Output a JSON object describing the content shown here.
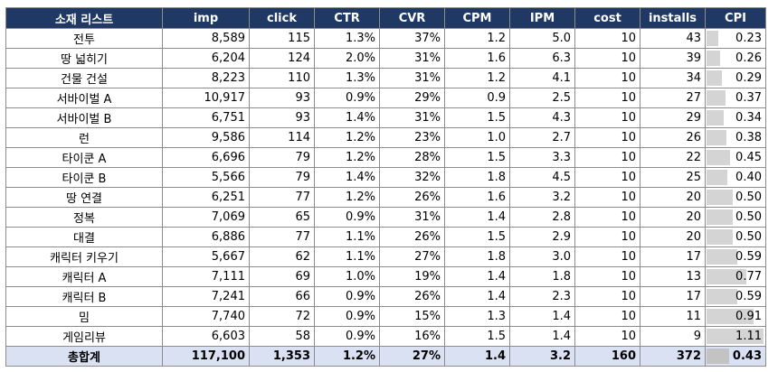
{
  "headers": [
    "소재 리스트",
    "imp",
    "click",
    "CTR",
    "CVR",
    "CPM",
    "IPM",
    "cost",
    "installs",
    "CPI"
  ],
  "rows": [
    {
      "name": "전투",
      "imp": "8,589",
      "click": "115",
      "ctr": "1.3%",
      "cvr": "37%",
      "cpm": "1.2",
      "ipm": "5.0",
      "cost": "10",
      "installs": "43",
      "cpi": "0.23",
      "cpi_value": 0.23
    },
    {
      "name": "땅 넓히기",
      "imp": "6,204",
      "click": "124",
      "ctr": "2.0%",
      "cvr": "31%",
      "cpm": "1.6",
      "ipm": "6.3",
      "cost": "10",
      "installs": "39",
      "cpi": "0.26",
      "cpi_value": 0.26
    },
    {
      "name": "건물 건설",
      "imp": "8,223",
      "click": "110",
      "ctr": "1.3%",
      "cvr": "31%",
      "cpm": "1.2",
      "ipm": "4.1",
      "cost": "10",
      "installs": "34",
      "cpi": "0.29",
      "cpi_value": 0.29
    },
    {
      "name": "서바이벌 A",
      "imp": "10,917",
      "click": "93",
      "ctr": "0.9%",
      "cvr": "29%",
      "cpm": "0.9",
      "ipm": "2.5",
      "cost": "10",
      "installs": "27",
      "cpi": "0.37",
      "cpi_value": 0.37
    },
    {
      "name": "서바이벌 B",
      "imp": "6,751",
      "click": "93",
      "ctr": "1.4%",
      "cvr": "31%",
      "cpm": "1.5",
      "ipm": "4.3",
      "cost": "10",
      "installs": "29",
      "cpi": "0.34",
      "cpi_value": 0.34
    },
    {
      "name": "런",
      "imp": "9,586",
      "click": "114",
      "ctr": "1.2%",
      "cvr": "23%",
      "cpm": "1.0",
      "ipm": "2.7",
      "cost": "10",
      "installs": "26",
      "cpi": "0.38",
      "cpi_value": 0.38
    },
    {
      "name": "타이쿤 A",
      "imp": "6,696",
      "click": "79",
      "ctr": "1.2%",
      "cvr": "28%",
      "cpm": "1.5",
      "ipm": "3.3",
      "cost": "10",
      "installs": "22",
      "cpi": "0.45",
      "cpi_value": 0.45
    },
    {
      "name": "타이쿤 B",
      "imp": "5,566",
      "click": "79",
      "ctr": "1.4%",
      "cvr": "32%",
      "cpm": "1.8",
      "ipm": "4.5",
      "cost": "10",
      "installs": "25",
      "cpi": "0.40",
      "cpi_value": 0.4
    },
    {
      "name": "땅 연결",
      "imp": "6,251",
      "click": "77",
      "ctr": "1.2%",
      "cvr": "26%",
      "cpm": "1.6",
      "ipm": "3.2",
      "cost": "10",
      "installs": "20",
      "cpi": "0.50",
      "cpi_value": 0.5
    },
    {
      "name": "정복",
      "imp": "7,069",
      "click": "65",
      "ctr": "0.9%",
      "cvr": "31%",
      "cpm": "1.4",
      "ipm": "2.8",
      "cost": "10",
      "installs": "20",
      "cpi": "0.50",
      "cpi_value": 0.5
    },
    {
      "name": "대결",
      "imp": "6,886",
      "click": "77",
      "ctr": "1.1%",
      "cvr": "26%",
      "cpm": "1.5",
      "ipm": "2.9",
      "cost": "10",
      "installs": "20",
      "cpi": "0.50",
      "cpi_value": 0.5
    },
    {
      "name": "캐릭터 키우기",
      "imp": "5,667",
      "click": "62",
      "ctr": "1.1%",
      "cvr": "27%",
      "cpm": "1.8",
      "ipm": "3.0",
      "cost": "10",
      "installs": "17",
      "cpi": "0.59",
      "cpi_value": 0.59
    },
    {
      "name": "캐릭터 A",
      "imp": "7,111",
      "click": "69",
      "ctr": "1.0%",
      "cvr": "19%",
      "cpm": "1.4",
      "ipm": "1.8",
      "cost": "10",
      "installs": "13",
      "cpi": "0.77",
      "cpi_value": 0.77
    },
    {
      "name": "캐릭터 B",
      "imp": "7,241",
      "click": "66",
      "ctr": "0.9%",
      "cvr": "26%",
      "cpm": "1.4",
      "ipm": "2.3",
      "cost": "10",
      "installs": "17",
      "cpi": "0.59",
      "cpi_value": 0.59
    },
    {
      "name": "밈",
      "imp": "7,740",
      "click": "72",
      "ctr": "0.9%",
      "cvr": "15%",
      "cpm": "1.3",
      "ipm": "1.4",
      "cost": "10",
      "installs": "11",
      "cpi": "0.91",
      "cpi_value": 0.91
    },
    {
      "name": "게임리뷰",
      "imp": "6,603",
      "click": "58",
      "ctr": "0.9%",
      "cvr": "16%",
      "cpm": "1.5",
      "ipm": "1.4",
      "cost": "10",
      "installs": "9",
      "cpi": "1.11",
      "cpi_value": 1.11
    }
  ],
  "total": {
    "name": "총합계",
    "imp": "117,100",
    "click": "1,353",
    "ctr": "1.2%",
    "cvr": "27%",
    "cpm": "1.4",
    "ipm": "3.2",
    "cost": "160",
    "installs": "372",
    "cpi": "0.43",
    "cpi_value": 0.43
  },
  "colors": {
    "header_bg": "#1f3864",
    "total_bg": "#d9e1f2",
    "cpi_bar": "#d4d4d4"
  }
}
